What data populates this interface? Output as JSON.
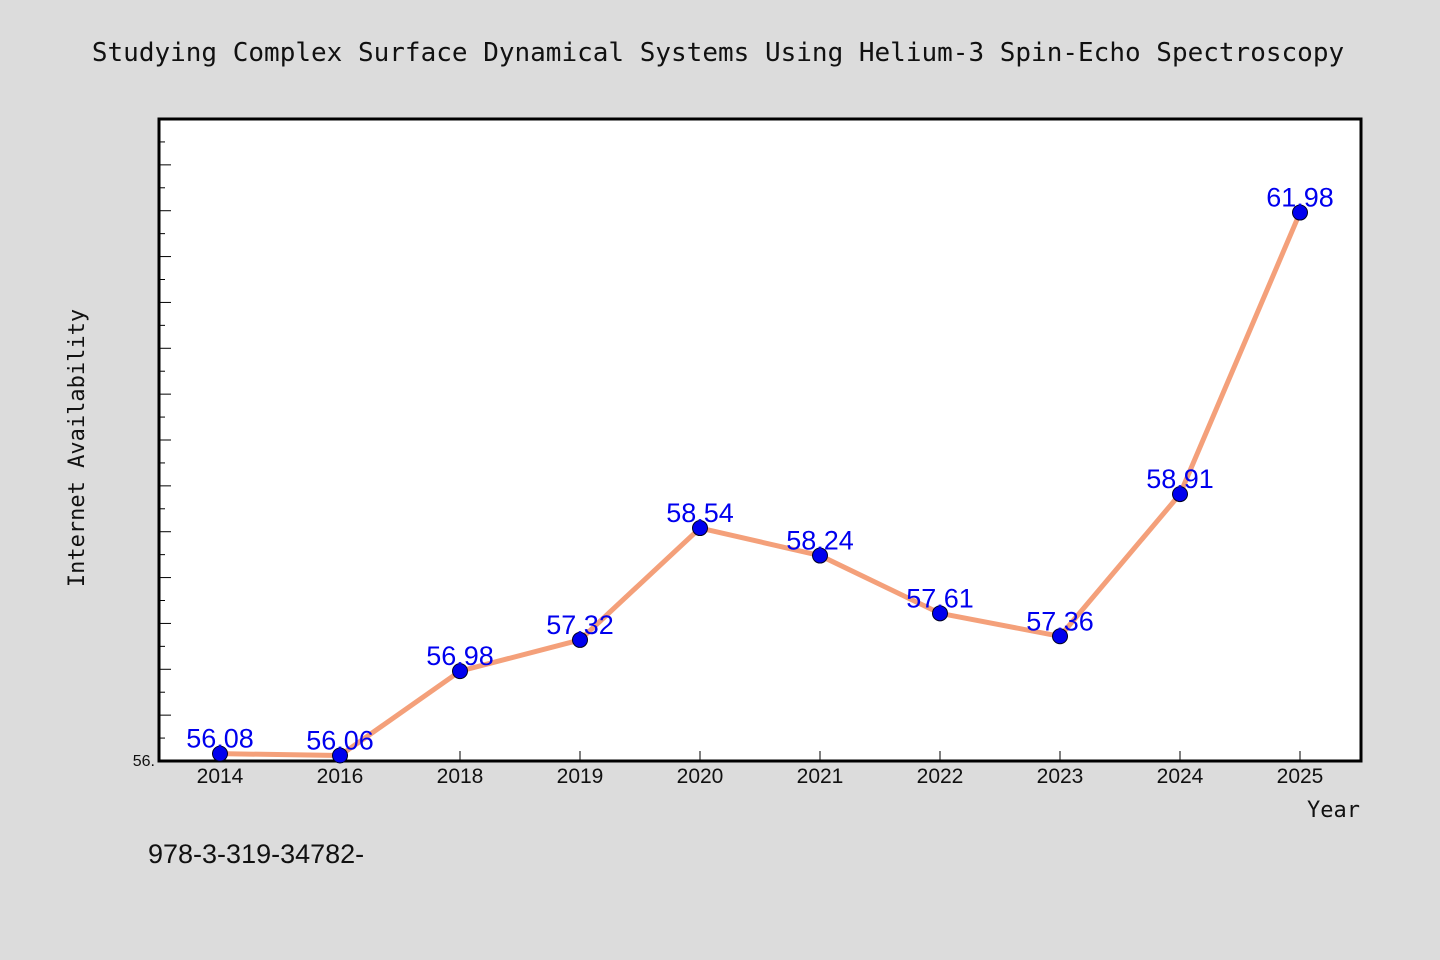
{
  "chart_data": {
    "type": "line",
    "title": "Studying Complex Surface Dynamical Systems Using Helium-3 Spin-Echo Spectroscopy",
    "xlabel": "Year",
    "ylabel": "Internet Availability",
    "categories": [
      "2014",
      "2016",
      "2018",
      "2019",
      "2020",
      "2021",
      "2022",
      "2023",
      "2024",
      "2025"
    ],
    "series": [
      {
        "values": [
          56.08,
          56.06,
          56.98,
          57.32,
          58.54,
          58.24,
          57.61,
          57.36,
          58.91,
          61.98
        ],
        "labels": [
          "56.08",
          "56.06",
          "56.98",
          "57.32",
          "58.54",
          "58.24",
          "57.61",
          "57.36",
          "58.91",
          "61.98"
        ],
        "line_color": "#f4a07a",
        "marker_color": "#0000ee",
        "label_color": "#0000ee"
      }
    ],
    "ylim": [
      56.0,
      63.0
    ],
    "y_tick_label": "56.",
    "grid": false,
    "legend": "none",
    "footer_text": "978-3-319-34782-"
  }
}
